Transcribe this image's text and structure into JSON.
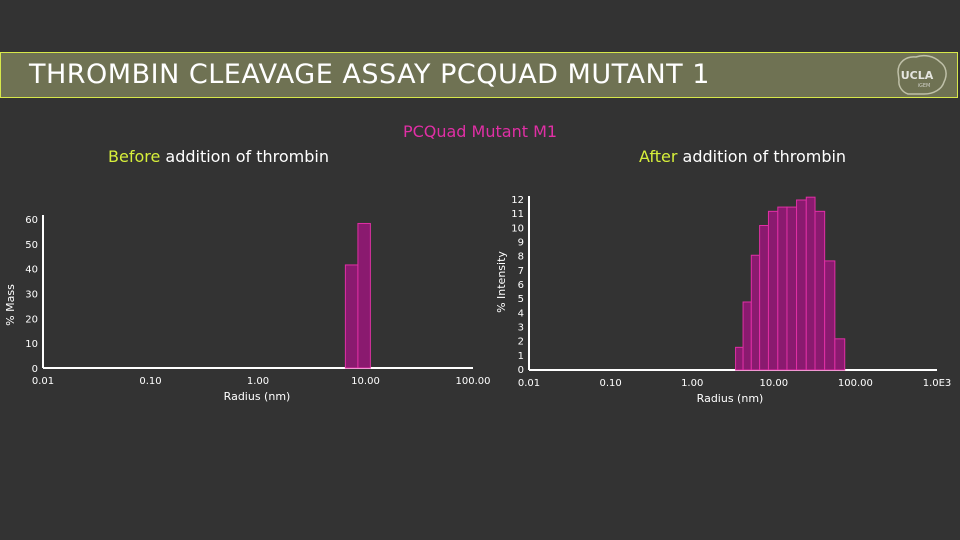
{
  "slide": {
    "title": "THROMBIN CLEAVAGE ASSAY PCQUAD MUTANT 1",
    "logo_text": "UCLA",
    "logo_subtext": "iGEM",
    "main_title": "PCQuad Mutant M1",
    "left_subtitle": {
      "highlight": "Before",
      "rest": " addition of thrombin"
    },
    "right_subtitle": {
      "highlight": "After",
      "rest": " addition of thrombin"
    }
  },
  "colors": {
    "background": "#333333",
    "title_bar": "#6f7253",
    "title_border": "#d7e84a",
    "bar_fill": "#8a1a6f",
    "bar_stroke": "#e02fa5",
    "highlight": "#d7ef3a"
  },
  "chart_data": [
    {
      "type": "bar",
      "title": "",
      "xlabel": "Radius (nm)",
      "ylabel": "% Mass",
      "x_scale": "log",
      "xlim": [
        0.01,
        100
      ],
      "ylim": [
        0,
        60
      ],
      "x_tick_labels": [
        "0.01",
        "0.10",
        "1.00",
        "10.00",
        "100.00"
      ],
      "y_tick_labels": [
        "0",
        "10",
        "20",
        "30",
        "40",
        "50",
        "60"
      ],
      "bins": [
        {
          "x_start": 6.5,
          "x_end": 8.5,
          "value": 41.5
        },
        {
          "x_start": 8.5,
          "x_end": 11.1,
          "value": 58.2
        }
      ]
    },
    {
      "type": "bar",
      "title": "",
      "xlabel": "Radius (nm)",
      "ylabel": "% Intensity",
      "x_scale": "log",
      "xlim": [
        0.01,
        1000
      ],
      "ylim": [
        0,
        12
      ],
      "x_tick_labels": [
        "0.01",
        "0.10",
        "1.00",
        "10.00",
        "100.00",
        "1.0E3"
      ],
      "y_tick_labels": [
        "0",
        "1",
        "2",
        "3",
        "4",
        "5",
        "6",
        "7",
        "8",
        "9",
        "10",
        "11",
        "12"
      ],
      "bins": [
        {
          "x_start": 3.4,
          "x_end": 4.2,
          "value": 1.6
        },
        {
          "x_start": 4.2,
          "x_end": 5.3,
          "value": 4.8
        },
        {
          "x_start": 5.3,
          "x_end": 6.7,
          "value": 8.1
        },
        {
          "x_start": 6.7,
          "x_end": 8.6,
          "value": 10.2
        },
        {
          "x_start": 8.6,
          "x_end": 11.2,
          "value": 11.2
        },
        {
          "x_start": 11.2,
          "x_end": 14.5,
          "value": 11.5
        },
        {
          "x_start": 14.5,
          "x_end": 19,
          "value": 11.5
        },
        {
          "x_start": 19,
          "x_end": 25,
          "value": 12.0
        },
        {
          "x_start": 25,
          "x_end": 32,
          "value": 12.2
        },
        {
          "x_start": 32,
          "x_end": 42,
          "value": 11.2
        },
        {
          "x_start": 42,
          "x_end": 56,
          "value": 7.7
        },
        {
          "x_start": 56,
          "x_end": 74,
          "value": 2.2
        }
      ]
    }
  ]
}
